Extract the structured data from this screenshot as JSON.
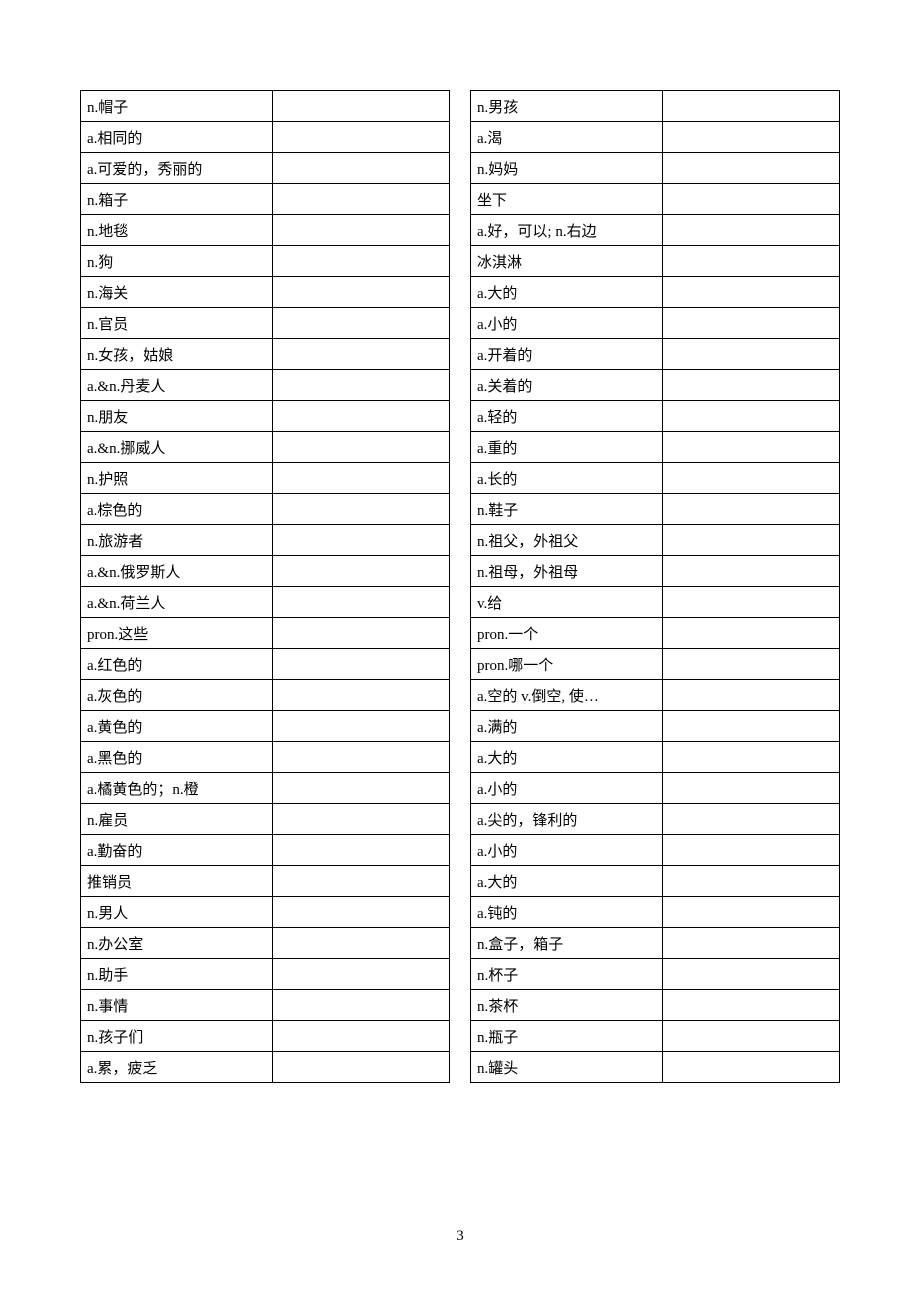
{
  "page_number": "3",
  "left_column": [
    "n.帽子",
    "a.相同的",
    "a.可爱的，秀丽的",
    "n.箱子",
    "n.地毯",
    "n.狗",
    "n.海关",
    "n.官员",
    "n.女孩，姑娘",
    "a.&n.丹麦人",
    "n.朋友",
    "a.&n.挪威人",
    "n.护照",
    "a.棕色的",
    "n.旅游者",
    "a.&n.俄罗斯人",
    "a.&n.荷兰人",
    "pron.这些",
    "a.红色的",
    "a.灰色的",
    "a.黄色的",
    "a.黑色的",
    "a.橘黄色的；n.橙",
    "n.雇员",
    "a.勤奋的",
    "推销员",
    "n.男人",
    "n.办公室",
    "n.助手",
    "n.事情",
    "n.孩子们",
    "a.累，疲乏"
  ],
  "right_column": [
    "n.男孩",
    "a.渴",
    "n.妈妈",
    "坐下",
    "a.好，可以; n.右边",
    "冰淇淋",
    "a.大的",
    "a.小的",
    "a.开着的",
    "a.关着的",
    "a.轻的",
    "a.重的",
    "a.长的",
    "n.鞋子",
    "n.祖父，外祖父",
    "n.祖母，外祖母",
    "v.给",
    "pron.一个",
    "pron.哪一个",
    "a.空的 v.倒空, 使…",
    "a.满的",
    "a.大的",
    "a.小的",
    "a.尖的，锋利的",
    "a.小的",
    "a.大的",
    "a.钝的",
    "n.盒子，箱子",
    "n.杯子",
    "n.茶杯",
    "n.瓶子",
    "n.罐头"
  ]
}
